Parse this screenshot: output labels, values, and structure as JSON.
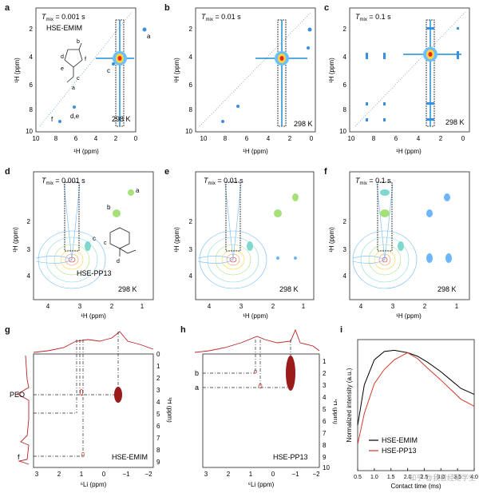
{
  "figure": {
    "panel_labels": [
      "a",
      "b",
      "c",
      "d",
      "e",
      "f",
      "g",
      "h",
      "i"
    ],
    "temperature": "298 K",
    "axis_1h": "¹H (ppm)",
    "axis_6li": "⁶Li (ppm)",
    "axis_h1_vertical": "¹H (ppm)",
    "row1": {
      "ticks_x": [
        "10",
        "8",
        "6",
        "4",
        "2",
        "0"
      ],
      "ticks_y": [
        "2",
        "4",
        "6",
        "8",
        "10"
      ],
      "panels": [
        {
          "tmix": "0.001 s",
          "sample": "HSE-EMIM",
          "peaks": [
            "a",
            "b",
            "c",
            "d,e",
            "f"
          ]
        },
        {
          "tmix": "0.01 s"
        },
        {
          "tmix": "0.1 s"
        }
      ]
    },
    "row2": {
      "ticks_x": [
        "4",
        "3",
        "2",
        "1"
      ],
      "ticks_y": [
        "2",
        "3",
        "4"
      ],
      "panels": [
        {
          "tmix": "0.001 s",
          "sample": "HSE-PP13",
          "peaks": [
            "a",
            "b",
            "c",
            "d"
          ]
        },
        {
          "tmix": "0.01 s"
        },
        {
          "tmix": "0.1 s"
        }
      ]
    },
    "g": {
      "sample": "HSE-EMIM",
      "ticks_x": [
        "3",
        "2",
        "1",
        "0",
        "−1",
        "−2"
      ],
      "ticks_y": [
        "0",
        "1",
        "2",
        "3",
        "4",
        "5",
        "6",
        "7",
        "8",
        "9"
      ],
      "labels": [
        "PEO",
        "f"
      ]
    },
    "h": {
      "sample": "HSE-PP13",
      "ticks_x": [
        "3",
        "2",
        "1",
        "0",
        "−1",
        "−2"
      ],
      "ticks_y": [
        "1",
        "2",
        "3",
        "4",
        "5",
        "6",
        "7",
        "8",
        "9",
        "10"
      ],
      "labels": [
        "b",
        "a"
      ]
    },
    "i": {
      "ylabel": "Normalized intensity (a.u.)",
      "xlabel": "Contact time (ms)",
      "ticks_x": [
        "0.5",
        "1.0",
        "1.5",
        "2.0",
        "2.5",
        "3.0",
        "3.5",
        "4.0"
      ],
      "legend": [
        "HSE-EMIM",
        "HSE-PP13"
      ],
      "watermark": "知乎 @我曾经是学生"
    }
  },
  "chart_data": [
    {
      "type": "line",
      "title": "",
      "xlabel": "Contact time (ms)",
      "ylabel": "Normalized intensity (a.u.)",
      "xlim": [
        0.5,
        4.0
      ],
      "ylim": [
        0,
        1.1
      ],
      "colors": {
        "HSE-EMIM": "#000000",
        "HSE-PP13": "#d33a2c"
      },
      "series": [
        {
          "name": "HSE-EMIM",
          "x": [
            0.5,
            0.7,
            1.0,
            1.3,
            1.6,
            2.0,
            2.3,
            2.6,
            3.0,
            3.3,
            3.6,
            4.0
          ],
          "values": [
            0.38,
            0.72,
            0.93,
            1.0,
            1.01,
            0.99,
            0.96,
            0.91,
            0.83,
            0.76,
            0.69,
            0.64
          ]
        },
        {
          "name": "HSE-PP13",
          "x": [
            0.5,
            0.7,
            1.0,
            1.3,
            1.6,
            2.0,
            2.3,
            2.6,
            3.0,
            3.3,
            3.6,
            4.0
          ],
          "values": [
            0.22,
            0.48,
            0.73,
            0.85,
            0.93,
            0.99,
            0.94,
            0.86,
            0.76,
            0.68,
            0.6,
            0.54
          ]
        }
      ]
    }
  ]
}
